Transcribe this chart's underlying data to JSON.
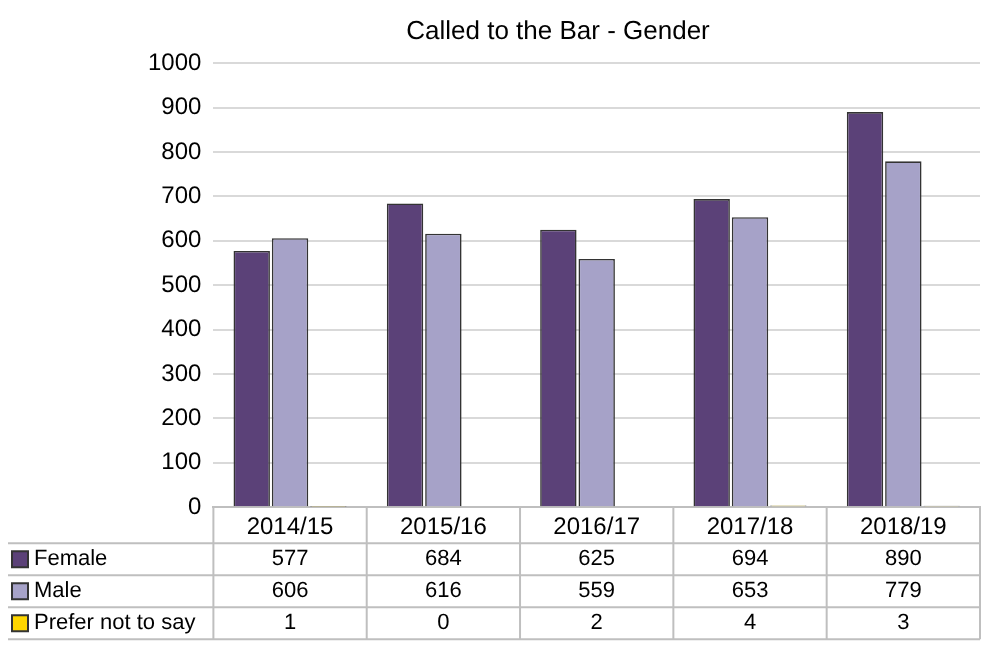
{
  "chart_data": {
    "type": "bar",
    "title": "Called to the Bar - Gender",
    "categories": [
      "2014/15",
      "2015/16",
      "2016/17",
      "2017/18",
      "2018/19"
    ],
    "series": [
      {
        "name": "Female",
        "color": "#5b4178",
        "values": [
          577,
          684,
          625,
          694,
          890
        ]
      },
      {
        "name": "Male",
        "color": "#a6a2c8",
        "values": [
          606,
          616,
          559,
          653,
          779
        ]
      },
      {
        "name": "Prefer not to say",
        "color": "#ffd700",
        "values": [
          1,
          0,
          2,
          4,
          3
        ]
      }
    ],
    "ylim": [
      0,
      1000
    ],
    "yticks": [
      0,
      100,
      200,
      300,
      400,
      500,
      600,
      700,
      800,
      900,
      1000
    ],
    "grid": "y",
    "legend": "bottom",
    "data_labels": true
  }
}
